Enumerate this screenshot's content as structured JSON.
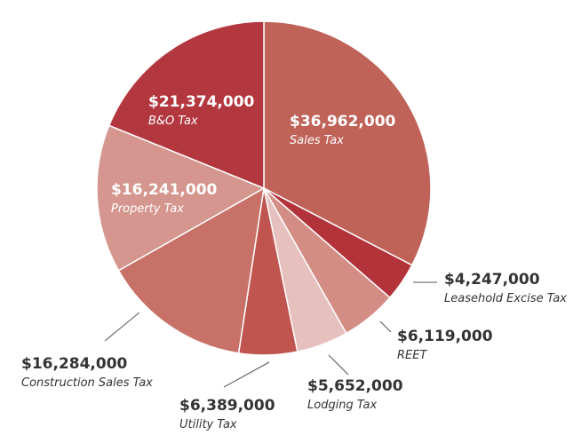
{
  "chart_data": {
    "type": "pie",
    "unit": "$",
    "slices": [
      {
        "value": 36962000,
        "value_label": "$36,962,000",
        "category": "Sales Tax",
        "color": "#bf6258",
        "label_inside": true,
        "label_color": "#ffffff"
      },
      {
        "value": 4247000,
        "value_label": "$4,247,000",
        "category": "Leasehold Excise Tax",
        "color": "#b2333a",
        "label_inside": false,
        "label_color": "#333333"
      },
      {
        "value": 6119000,
        "value_label": "$6,119,000",
        "category": "REET",
        "color": "#d48d84",
        "label_inside": false,
        "label_color": "#333333"
      },
      {
        "value": 5652000,
        "value_label": "$5,652,000",
        "category": "Lodging Tax",
        "color": "#e6c0bc",
        "label_inside": false,
        "label_color": "#333333"
      },
      {
        "value": 6389000,
        "value_label": "$6,389,000",
        "category": "Utility Tax",
        "color": "#c0544f",
        "label_inside": false,
        "label_color": "#333333"
      },
      {
        "value": 16284000,
        "value_label": "$16,284,000",
        "category": "Construction Sales Tax",
        "color": "#c87168",
        "label_inside": false,
        "label_color": "#333333"
      },
      {
        "value": 16241000,
        "value_label": "$16,241,000",
        "category": "Property Tax",
        "color": "#d4968e",
        "label_inside": true,
        "label_color": "#ffffff"
      },
      {
        "value": 21374000,
        "value_label": "$21,374,000",
        "category": "B&O Tax",
        "color": "#b3373e",
        "label_inside": true,
        "label_color": "#ffffff"
      }
    ]
  }
}
